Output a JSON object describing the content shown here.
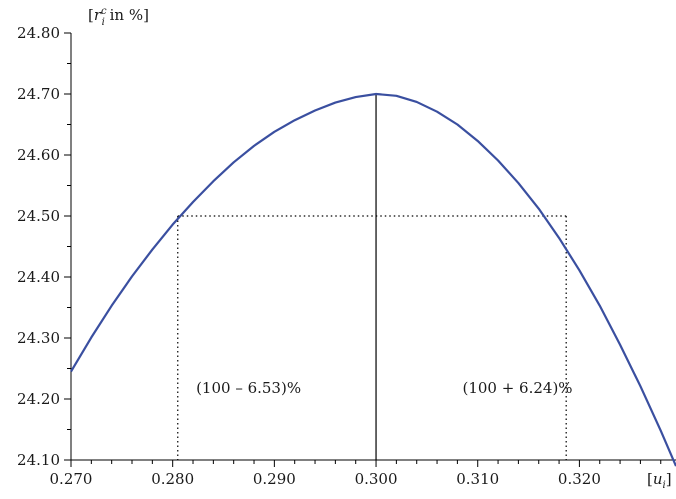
{
  "chart_data": {
    "type": "line",
    "title": "",
    "xlabel": "[u_i]",
    "ylabel": "[r_i^c in %]",
    "xlabel_parts": {
      "open": "[",
      "var": "u",
      "sub": "i",
      "close": "]"
    },
    "ylabel_parts": {
      "open": "[",
      "var": "r",
      "sub": "i",
      "sup": "c",
      "rest": " in %]"
    },
    "xlim": [
      0.27,
      0.3295
    ],
    "ylim": [
      24.1,
      24.8
    ],
    "x_ticks": [
      0.27,
      0.28,
      0.29,
      0.3,
      0.31,
      0.32
    ],
    "x_tick_labels": [
      "0.270",
      "0.280",
      "0.290",
      "0.300",
      "0.310",
      "0.320"
    ],
    "y_ticks": [
      24.1,
      24.2,
      24.3,
      24.4,
      24.5,
      24.6,
      24.7,
      24.8
    ],
    "y_tick_labels": [
      "24.10",
      "24.20",
      "24.30",
      "24.40",
      "24.50",
      "24.60",
      "24.70",
      "24.80"
    ],
    "grid": false,
    "series": [
      {
        "color": "#3a4fa0",
        "x": [
          0.27,
          0.272,
          0.274,
          0.276,
          0.278,
          0.28,
          0.282,
          0.284,
          0.286,
          0.288,
          0.29,
          0.292,
          0.294,
          0.296,
          0.298,
          0.3,
          0.302,
          0.304,
          0.306,
          0.308,
          0.31,
          0.312,
          0.314,
          0.316,
          0.318,
          0.32,
          0.322,
          0.324,
          0.326,
          0.328,
          0.3295
        ],
        "y": [
          24.245,
          24.301,
          24.353,
          24.401,
          24.445,
          24.486,
          24.523,
          24.557,
          24.588,
          24.615,
          24.638,
          24.657,
          24.673,
          24.686,
          24.695,
          24.7,
          24.697,
          24.687,
          24.671,
          24.65,
          24.623,
          24.591,
          24.554,
          24.512,
          24.464,
          24.411,
          24.353,
          24.289,
          24.221,
          24.148,
          24.09
        ]
      }
    ],
    "peak": {
      "x": 0.3,
      "y": 24.7
    },
    "reference_line": {
      "y": 24.5,
      "x_left": 0.2805,
      "x_right": 0.3187
    },
    "annotations": [
      {
        "text": "(100 – 6.53)%",
        "x": 0.2823,
        "y": 24.2
      },
      {
        "text": "(100 + 6.24)%",
        "x": 0.3085,
        "y": 24.2
      }
    ]
  }
}
